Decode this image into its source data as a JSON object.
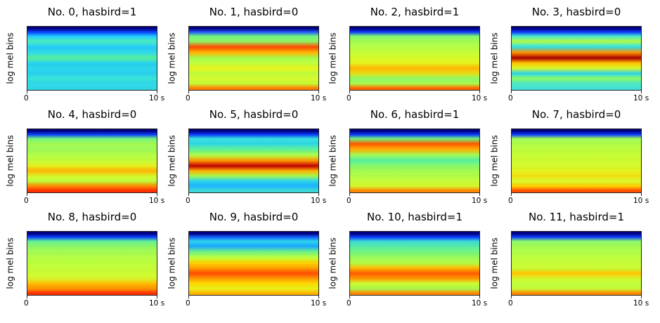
{
  "figure": {
    "ylabel": "log mel bins",
    "x_start": "0",
    "x_end": "10 s"
  },
  "panels": [
    {
      "title": "No. 0, hasbird=1",
      "bands": [
        "#01007f",
        "#0a41ff",
        "#20c6ff",
        "#4bf0c0",
        "#24cbf8",
        "#2fd8e6",
        "#56f29f",
        "#27d0f0",
        "#2ad6eb",
        "#29d1ee",
        "#37e4d9",
        "#2ed7ea",
        "#2fd8e6"
      ]
    },
    {
      "title": "No. 1, hasbird=0",
      "bands": [
        "#01007f",
        "#2358ff",
        "#6ff47f",
        "#8ef866",
        "#ff4a00",
        "#ffb400",
        "#a6fb4e",
        "#c0ff3c",
        "#e8f31a",
        "#bcfe3c",
        "#d8f82c",
        "#c4fc38",
        "#ff8200"
      ]
    },
    {
      "title": "No. 2, hasbird=1",
      "bands": [
        "#01007f",
        "#0c3cff",
        "#7ff873",
        "#a4fc52",
        "#b6fe46",
        "#c4fc38",
        "#d6fa2a",
        "#e4f21c",
        "#ffb400",
        "#e8e018",
        "#8ff766",
        "#a9fc4c",
        "#ff6a00"
      ]
    },
    {
      "title": "No. 3, hasbird=0",
      "bands": [
        "#01007f",
        "#0a3bff",
        "#45e7cd",
        "#b2fd48",
        "#30e0e6",
        "#ff9000",
        "#aa0000",
        "#ffcc00",
        "#d4f82e",
        "#2bd4ec",
        "#89fa68",
        "#4ee9c4",
        "#44e0d6"
      ]
    },
    {
      "title": "No. 4, hasbird=0",
      "bands": [
        "#01007f",
        "#0c41ff",
        "#72f47e",
        "#a3fb52",
        "#9ef956",
        "#b4fd46",
        "#c2fc3a",
        "#e6f01e",
        "#ffb200",
        "#d8f82c",
        "#bcfe3c",
        "#ff8a00",
        "#ff3000"
      ]
    },
    {
      "title": "No. 5, hasbird=0",
      "bands": [
        "#01007f",
        "#0b3cff",
        "#35e0dc",
        "#2fd8e6",
        "#5df196",
        "#b0fc48",
        "#ff9a00",
        "#c20000",
        "#ffb000",
        "#a6fb4e",
        "#2bd4ec",
        "#1db4ff",
        "#3ad8d6"
      ]
    },
    {
      "title": "No. 6, hasbird=1",
      "bands": [
        "#01007f",
        "#0a3aff",
        "#70f47c",
        "#ff5a00",
        "#ffaf00",
        "#9cfa58",
        "#56f0a0",
        "#89f86a",
        "#a2fb52",
        "#b2fd48",
        "#c4fc38",
        "#d6f82c",
        "#ff8800"
      ]
    },
    {
      "title": "No. 7, hasbird=0",
      "bands": [
        "#01007f",
        "#0c3cff",
        "#9cfa58",
        "#b2fd48",
        "#bcfe3c",
        "#c6fc36",
        "#cdfb30",
        "#d6f82c",
        "#e4f21c",
        "#f2e012",
        "#d8f82c",
        "#ffd000",
        "#ff5000"
      ]
    },
    {
      "title": "No. 8, hasbird=0",
      "bands": [
        "#01007f",
        "#0c3fff",
        "#5ff096",
        "#8ff766",
        "#a4fb52",
        "#b4fd46",
        "#bcfe3c",
        "#c6fc36",
        "#ccfb32",
        "#d8f82c",
        "#ffba00",
        "#ff9600",
        "#ff3000"
      ]
    },
    {
      "title": "No. 9, hasbird=0",
      "bands": [
        "#01007f",
        "#1460ff",
        "#2bd4ec",
        "#1aa8ff",
        "#6ff482",
        "#c0ff3c",
        "#ffd200",
        "#ff9a00",
        "#ff4a00",
        "#ff9a00",
        "#ffd800",
        "#e8f31a",
        "#ffb400"
      ]
    },
    {
      "title": "No. 10, hasbird=1",
      "bands": [
        "#01007f",
        "#0c3cff",
        "#3ad8d6",
        "#56eca8",
        "#72f47e",
        "#9cfa58",
        "#b4fd46",
        "#ffb400",
        "#ff5a00",
        "#ff9a00",
        "#cdfb30",
        "#a6fb4e",
        "#ff8a00"
      ]
    },
    {
      "title": "No. 11, hasbird=1",
      "bands": [
        "#01007f",
        "#0c3cff",
        "#89f86a",
        "#a4fb52",
        "#b2fd48",
        "#bcfe3c",
        "#c6fc36",
        "#ccfb32",
        "#ffc400",
        "#d6f82c",
        "#bcfe3c",
        "#c6fc36",
        "#ff8a00"
      ]
    }
  ]
}
